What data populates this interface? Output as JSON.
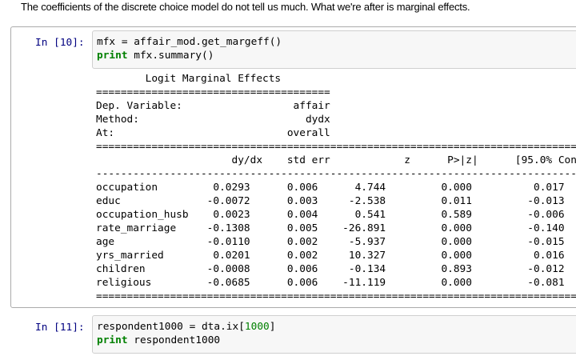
{
  "markdown": "The coefficients of the discrete choice model do not tell us much. What we're after is marginal effects.",
  "cells": [
    {
      "prompt": "In [10]:",
      "code": {
        "line1": "mfx = affair_mod.get_margeff()",
        "line2_kw": "print",
        "line2_rest": " mfx.summary()"
      },
      "output": [
        "        Logit Marginal Effects",
        "======================================",
        "Dep. Variable:                  affair",
        "Method:                           dydx",
        "At:                            overall",
        "==============================================================================",
        "                      dy/dx    std err            z      P>|z|      [95.0% Con",
        "------------------------------------------------------------------------------",
        "occupation         0.0293      0.006      4.744         0.000          0.017",
        "educ              -0.0072      0.003     -2.538         0.011         -0.013",
        "occupation_husb    0.0023      0.004      0.541         0.589         -0.006",
        "rate_marriage     -0.1308      0.005    -26.891         0.000         -0.140",
        "age               -0.0110      0.002     -5.937         0.000         -0.015",
        "yrs_married        0.0201      0.002     10.327         0.000          0.016",
        "children          -0.0008      0.006     -0.134         0.893         -0.012",
        "religious         -0.0685      0.006    -11.119         0.000         -0.081",
        "=============================================================================="
      ]
    },
    {
      "prompt": "In [11]:",
      "code": {
        "line1_a": "respondent1000 = dta.ix[",
        "line1_num": "1000",
        "line1_b": "]",
        "line2_kw": "print",
        "line2_rest": " respondent1000"
      }
    }
  ]
}
